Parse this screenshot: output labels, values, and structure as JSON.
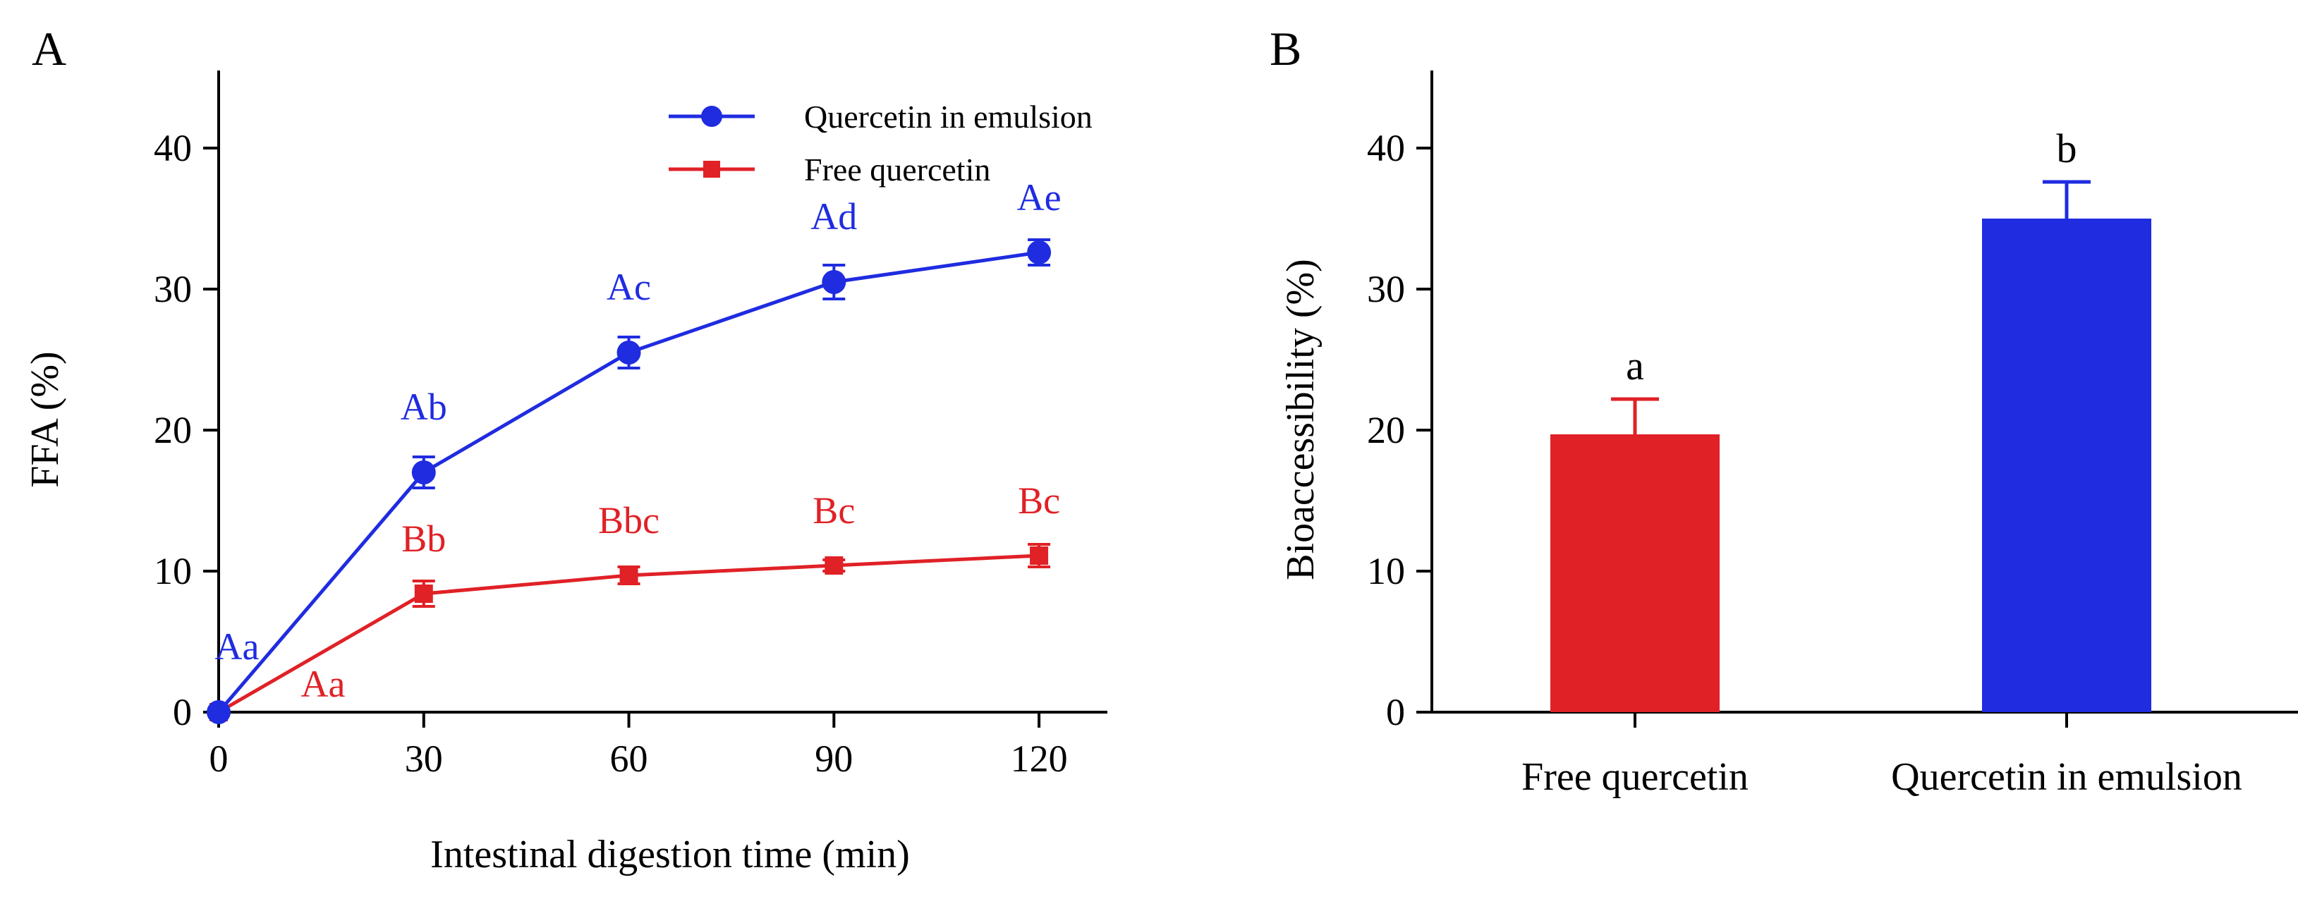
{
  "colors": {
    "blue": "#1f2ce0",
    "red": "#e02126",
    "axis": "#000000"
  },
  "chart_data": [
    {
      "type": "line",
      "panel_label": "A",
      "xlabel": "Intestinal digestion time (min)",
      "ylabel": "FFA (%)",
      "x": [
        0,
        30,
        60,
        90,
        120
      ],
      "xticks": [
        0,
        30,
        60,
        90,
        120
      ],
      "yticks": [
        0,
        10,
        20,
        30,
        40
      ],
      "xlim": [
        0,
        130
      ],
      "ylim": [
        0,
        45
      ],
      "series": [
        {
          "name": "Quercetin in emulsion",
          "color": "#1f2ce0",
          "marker": "circle",
          "values": [
            0,
            17.0,
            25.5,
            30.5,
            32.6
          ],
          "errors": [
            0,
            1.1,
            1.1,
            1.2,
            0.9
          ],
          "labels": [
            "Aa",
            "Ab",
            "Ac",
            "Ad",
            "Ae"
          ]
        },
        {
          "name": "Free quercetin",
          "color": "#e02126",
          "marker": "square",
          "values": [
            0,
            8.4,
            9.7,
            10.4,
            11.1
          ],
          "errors": [
            0,
            0.9,
            0.6,
            0.4,
            0.8
          ],
          "labels": [
            "Aa",
            "Bb",
            "Bbc",
            "Bc",
            "Bc"
          ]
        }
      ]
    },
    {
      "type": "bar",
      "panel_label": "B",
      "ylabel": "Bioaccessibility (%)",
      "categories": [
        "Free quercetin",
        "Quercetin in emulsion"
      ],
      "values": [
        19.7,
        35.0
      ],
      "errors": [
        2.5,
        2.6
      ],
      "labels": [
        "a",
        "b"
      ],
      "colors": [
        "#e02126",
        "#1f2ce0"
      ],
      "yticks": [
        0,
        10,
        20,
        30,
        40
      ],
      "ylim": [
        0,
        45
      ]
    }
  ]
}
